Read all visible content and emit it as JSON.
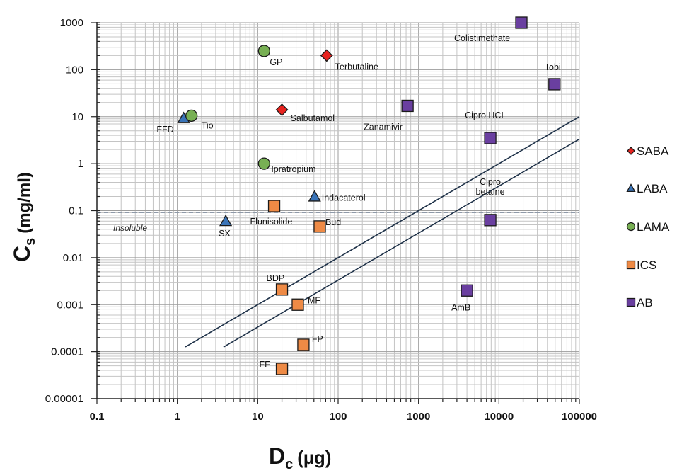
{
  "chart_data": {
    "type": "scatter",
    "title": "",
    "xlabel": "D",
    "xlabel_sub": "c",
    "xlabel_unit": "(µg)",
    "ylabel": "C",
    "ylabel_sub": "s",
    "ylabel_unit": "(mg/ml)",
    "xscale": "log",
    "yscale": "log",
    "xlim": [
      0.1,
      100000
    ],
    "ylim": [
      1e-05,
      1000
    ],
    "grid": true,
    "legend_position": "right",
    "x_ticks": [
      "0.1",
      "1",
      "10",
      "100",
      "1000",
      "10000",
      "100000"
    ],
    "y_ticks": [
      "0.00001",
      "0.0001",
      "0.001",
      "0.01",
      "0.1",
      "1",
      "10",
      "100",
      "1000"
    ],
    "series": [
      {
        "name": "SABA",
        "marker": "diamond",
        "color": "#e8231f",
        "points": [
          {
            "label": "Terbutaline",
            "x": 72,
            "y": 200
          },
          {
            "label": "Salbutamol",
            "x": 20,
            "y": 14
          }
        ]
      },
      {
        "name": "LABA",
        "marker": "triangle",
        "color": "#3a74b8",
        "points": [
          {
            "label": "FFD",
            "x": 1.2,
            "y": 9.3
          },
          {
            "label": "Indacaterol",
            "x": 51,
            "y": 0.2
          },
          {
            "label": "SX",
            "x": 4,
            "y": 0.06
          }
        ]
      },
      {
        "name": "LAMA",
        "marker": "circle",
        "color": "#78b054",
        "points": [
          {
            "label": "GP",
            "x": 12,
            "y": 250
          },
          {
            "label": "Tio",
            "x": 1.5,
            "y": 10.5
          },
          {
            "label": "Ipratropium",
            "x": 12,
            "y": 1.0
          }
        ]
      },
      {
        "name": "ICS",
        "marker": "square",
        "color": "#ee8a45",
        "points": [
          {
            "label": "Flunisolide",
            "x": 16,
            "y": 0.125
          },
          {
            "label": "Bud",
            "x": 59,
            "y": 0.046
          },
          {
            "label": "BDP",
            "x": 20,
            "y": 0.0021
          },
          {
            "label": "MF",
            "x": 31.5,
            "y": 0.001
          },
          {
            "label": "FP",
            "x": 37,
            "y": 0.00014
          },
          {
            "label": "FF",
            "x": 20,
            "y": 4.3e-05
          }
        ]
      },
      {
        "name": "AB",
        "marker": "square",
        "color": "#6a3fa0",
        "points": [
          {
            "label": "Colistimethate",
            "x": 19000,
            "y": 1000
          },
          {
            "label": "Tobi",
            "x": 49000,
            "y": 49
          },
          {
            "label": "Zanamivir",
            "x": 730,
            "y": 17
          },
          {
            "label": "Cipro HCL",
            "x": 7800,
            "y": 3.5
          },
          {
            "label": "Cipro betaine",
            "x": 7800,
            "y": 0.063
          },
          {
            "label": "AmB",
            "x": 4000,
            "y": 0.002
          }
        ]
      }
    ],
    "reference_lines": [
      {
        "name": "upper-diagonal",
        "x": [
          1.26,
          100000
        ],
        "y": [
          0.000126,
          10
        ]
      },
      {
        "name": "lower-diagonal",
        "x": [
          3.75,
          100000
        ],
        "y": [
          0.000125,
          3.33
        ]
      }
    ],
    "threshold": {
      "y": 0.092,
      "label": "Insoluble"
    }
  }
}
